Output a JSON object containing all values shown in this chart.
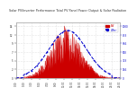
{
  "title": "Solar PV/Inverter Performance Total PV Panel Power Output & Solar Radiation",
  "bg_color": "#ffffff",
  "plot_bg_color": "#ffffff",
  "grid_color": "#cccccc",
  "red_color": "#cc0000",
  "blue_color": "#0000cc",
  "legend_red_label": "kW",
  "legend_blue_label": "W/m²",
  "title_color": "#333333",
  "tick_color": "#333333",
  "spine_color": "#aaaaaa"
}
